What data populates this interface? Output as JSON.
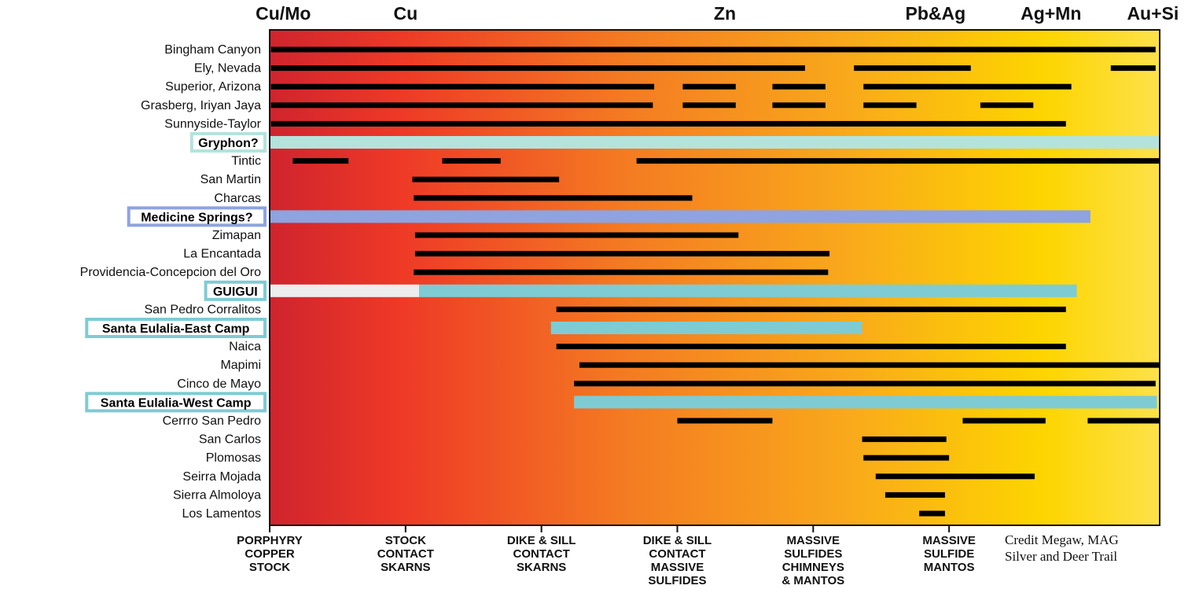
{
  "chart_data": {
    "type": "bar",
    "subtype": "range-timeline",
    "top_labels": [
      "Cu/Mo",
      "Cu",
      "Zn",
      "Pb&Ag",
      "Ag+Mn",
      "Au+Si"
    ],
    "x_categories": [
      "PORPHYRY\nCOPPER\nSTOCK",
      "STOCK\nCONTACT\nSKARNS",
      "DIKE & SILL\nCONTACT\nSKARNS",
      "DIKE & SILL\nCONTACT\nMASSIVE\nSULFIDES",
      "MASSIVE\nSULFIDES\nCHIMNEYS\n& MANTOS",
      "MASSIVE\nSULFIDE\nMANTOS"
    ],
    "xlim": [
      0,
      6.55
    ],
    "background_gradient": [
      "#d0242e",
      "#ee3a26",
      "#f47b22",
      "#f9a91b",
      "#fdd500",
      "#fde14a"
    ],
    "credit": "Credit Megaw,  MAG\nSilver and Deer Trail",
    "rows": [
      {
        "name": "Bingham Canyon",
        "segments": [
          [
            0.01,
            6.52
          ]
        ]
      },
      {
        "name": "Ely, Nevada",
        "segments": [
          [
            0.01,
            3.94
          ],
          [
            4.3,
            5.16
          ],
          [
            6.19,
            6.52
          ]
        ]
      },
      {
        "name": "Superior, Arizona",
        "segments": [
          [
            0.01,
            2.83
          ],
          [
            3.04,
            3.43
          ],
          [
            3.7,
            4.09
          ],
          [
            4.37,
            5.9
          ]
        ]
      },
      {
        "name": "Grasberg, Iriyan Jaya",
        "segments": [
          [
            0.01,
            2.82
          ],
          [
            3.04,
            3.43
          ],
          [
            3.7,
            4.09
          ],
          [
            4.37,
            4.76
          ],
          [
            5.23,
            5.62
          ]
        ]
      },
      {
        "name": "Sunnyside-Taylor",
        "segments": [
          [
            0.01,
            5.86
          ]
        ]
      },
      {
        "name": "Gryphon?",
        "highlight": true,
        "color": "#b4e3dc",
        "segments": [
          [
            0.0,
            6.55
          ]
        ]
      },
      {
        "name": "Tintic",
        "segments": [
          [
            0.17,
            0.58
          ],
          [
            1.27,
            1.7
          ],
          [
            2.7,
            6.55
          ]
        ]
      },
      {
        "name": "San Martin",
        "segments": [
          [
            1.05,
            2.13
          ]
        ]
      },
      {
        "name": "Charcas",
        "segments": [
          [
            1.06,
            3.11
          ]
        ]
      },
      {
        "name": "Medicine Springs?",
        "highlight": true,
        "color": "#8ea3df",
        "segments": [
          [
            0.0,
            6.04
          ]
        ]
      },
      {
        "name": "Zimapan",
        "segments": [
          [
            1.07,
            3.45
          ]
        ]
      },
      {
        "name": "La Encantada",
        "segments": [
          [
            1.07,
            4.12
          ]
        ]
      },
      {
        "name": "Providencia-Concepcion del Oro",
        "segments": [
          [
            1.06,
            4.11
          ]
        ]
      },
      {
        "name": "GUIGUI",
        "highlight": true,
        "color": "#7ecbd4",
        "segments": [
          [
            1.1,
            5.94
          ]
        ],
        "lead_in": [
          [
            0.0,
            1.1
          ]
        ],
        "lead_in_color": "#ededed"
      },
      {
        "name": "San Pedro Corralitos",
        "segments": [
          [
            2.11,
            5.86
          ]
        ]
      },
      {
        "name": "Santa Eulalia-East Camp",
        "highlight": true,
        "color": "#7ecbd4",
        "segments": [
          [
            2.07,
            4.36
          ]
        ]
      },
      {
        "name": "Naica",
        "segments": [
          [
            2.11,
            5.86
          ]
        ]
      },
      {
        "name": "Mapimi",
        "segments": [
          [
            2.28,
            6.55
          ]
        ]
      },
      {
        "name": "Cinco de Mayo",
        "segments": [
          [
            2.24,
            6.52
          ]
        ]
      },
      {
        "name": "Santa Eulalia-West Camp",
        "highlight": true,
        "color": "#7ecbd4",
        "segments": [
          [
            2.24,
            6.53
          ]
        ]
      },
      {
        "name": "Cerrro San Pedro",
        "segments": [
          [
            3.0,
            3.7
          ],
          [
            5.1,
            5.71
          ],
          [
            6.02,
            6.55
          ]
        ]
      },
      {
        "name": "San Carlos",
        "segments": [
          [
            4.36,
            4.98
          ]
        ]
      },
      {
        "name": "Plomosas",
        "segments": [
          [
            4.37,
            5.0
          ]
        ]
      },
      {
        "name": "Seirra Mojada",
        "segments": [
          [
            4.46,
            5.63
          ]
        ]
      },
      {
        "name": "Sierra Almoloya",
        "segments": [
          [
            4.53,
            4.97
          ]
        ]
      },
      {
        "name": "Los Lamentos",
        "segments": [
          [
            4.78,
            4.97
          ]
        ]
      }
    ]
  }
}
